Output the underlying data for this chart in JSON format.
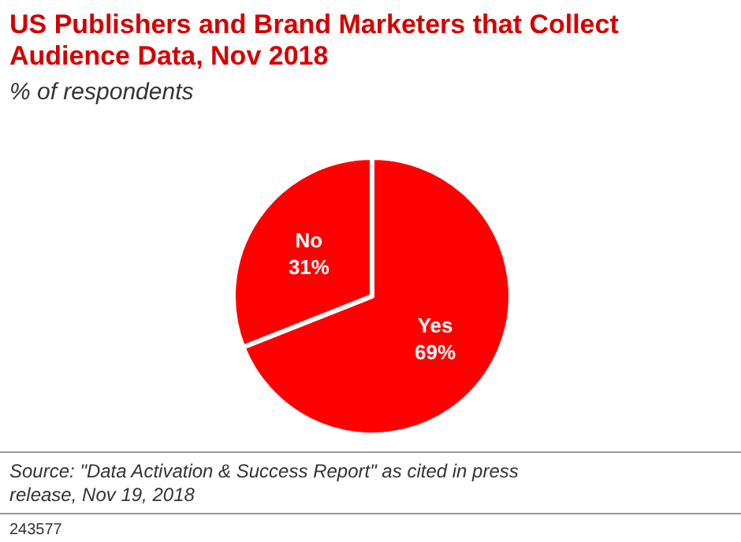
{
  "chart_data": {
    "type": "pie",
    "title": "US Publishers and Brand Marketers that Collect Audience Data, Nov 2018",
    "subtitle": "% of respondents",
    "categories": [
      "Yes",
      "No"
    ],
    "values": [
      69,
      31
    ],
    "colors": [
      "#ff0000",
      "#ff0000"
    ],
    "value_labels": [
      "69%",
      "31%"
    ],
    "annotations": [
      "Source: \"Data Activation & Success Report\" as cited in press release, Nov 19, 2018",
      "243577"
    ]
  }
}
